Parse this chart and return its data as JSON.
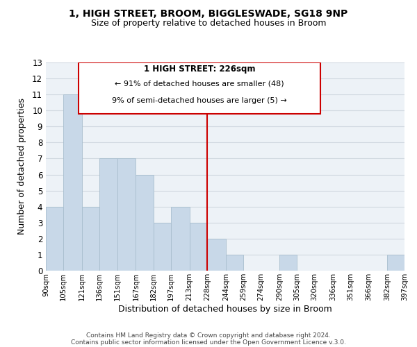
{
  "title1": "1, HIGH STREET, BROOM, BIGGLESWADE, SG18 9NP",
  "title2": "Size of property relative to detached houses in Broom",
  "xlabel": "Distribution of detached houses by size in Broom",
  "ylabel": "Number of detached properties",
  "bin_edges": [
    90,
    105,
    121,
    136,
    151,
    167,
    182,
    197,
    213,
    228,
    244,
    259,
    274,
    290,
    305,
    320,
    336,
    351,
    366,
    382,
    397
  ],
  "counts": [
    4,
    11,
    4,
    7,
    7,
    6,
    3,
    4,
    3,
    2,
    1,
    0,
    0,
    1,
    0,
    0,
    0,
    0,
    0,
    1
  ],
  "bar_color": "#c8d8e8",
  "bar_edgecolor": "#a8bece",
  "vline_x": 228,
  "vline_color": "#cc0000",
  "ylim": [
    0,
    13
  ],
  "yticks": [
    0,
    1,
    2,
    3,
    4,
    5,
    6,
    7,
    8,
    9,
    10,
    11,
    12,
    13
  ],
  "annotation_title": "1 HIGH STREET: 226sqm",
  "annotation_line1": "← 91% of detached houses are smaller (48)",
  "annotation_line2": "9% of semi-detached houses are larger (5) →",
  "footer1": "Contains HM Land Registry data © Crown copyright and database right 2024.",
  "footer2": "Contains public sector information licensed under the Open Government Licence v.3.0.",
  "grid_color": "#d0d8e0",
  "background_color": "#edf2f7",
  "tick_labels": [
    "90sqm",
    "105sqm",
    "121sqm",
    "136sqm",
    "151sqm",
    "167sqm",
    "182sqm",
    "197sqm",
    "213sqm",
    "228sqm",
    "244sqm",
    "259sqm",
    "274sqm",
    "290sqm",
    "305sqm",
    "320sqm",
    "336sqm",
    "351sqm",
    "366sqm",
    "382sqm",
    "397sqm"
  ]
}
